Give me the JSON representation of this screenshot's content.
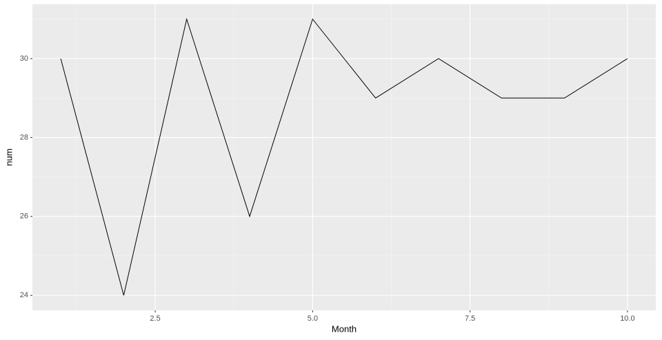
{
  "chart_data": {
    "type": "line",
    "x_label": "Month",
    "y_label": "num",
    "x": [
      1,
      2,
      3,
      4,
      5,
      6,
      7,
      8,
      9,
      10
    ],
    "values": [
      30,
      24,
      31,
      26,
      31,
      29,
      30,
      29,
      29,
      30
    ],
    "color": "#000000",
    "xlim": [
      0.55,
      10.45
    ],
    "xticks": [
      2.5,
      {
        "value": 5,
        "label": "5.0"
      },
      7.5,
      {
        "value": 10,
        "label": "10.0"
      }
    ],
    "ylim": [
      23.62,
      31.38
    ],
    "yticks": [
      24,
      26,
      28,
      30
    ],
    "grid": true
  }
}
